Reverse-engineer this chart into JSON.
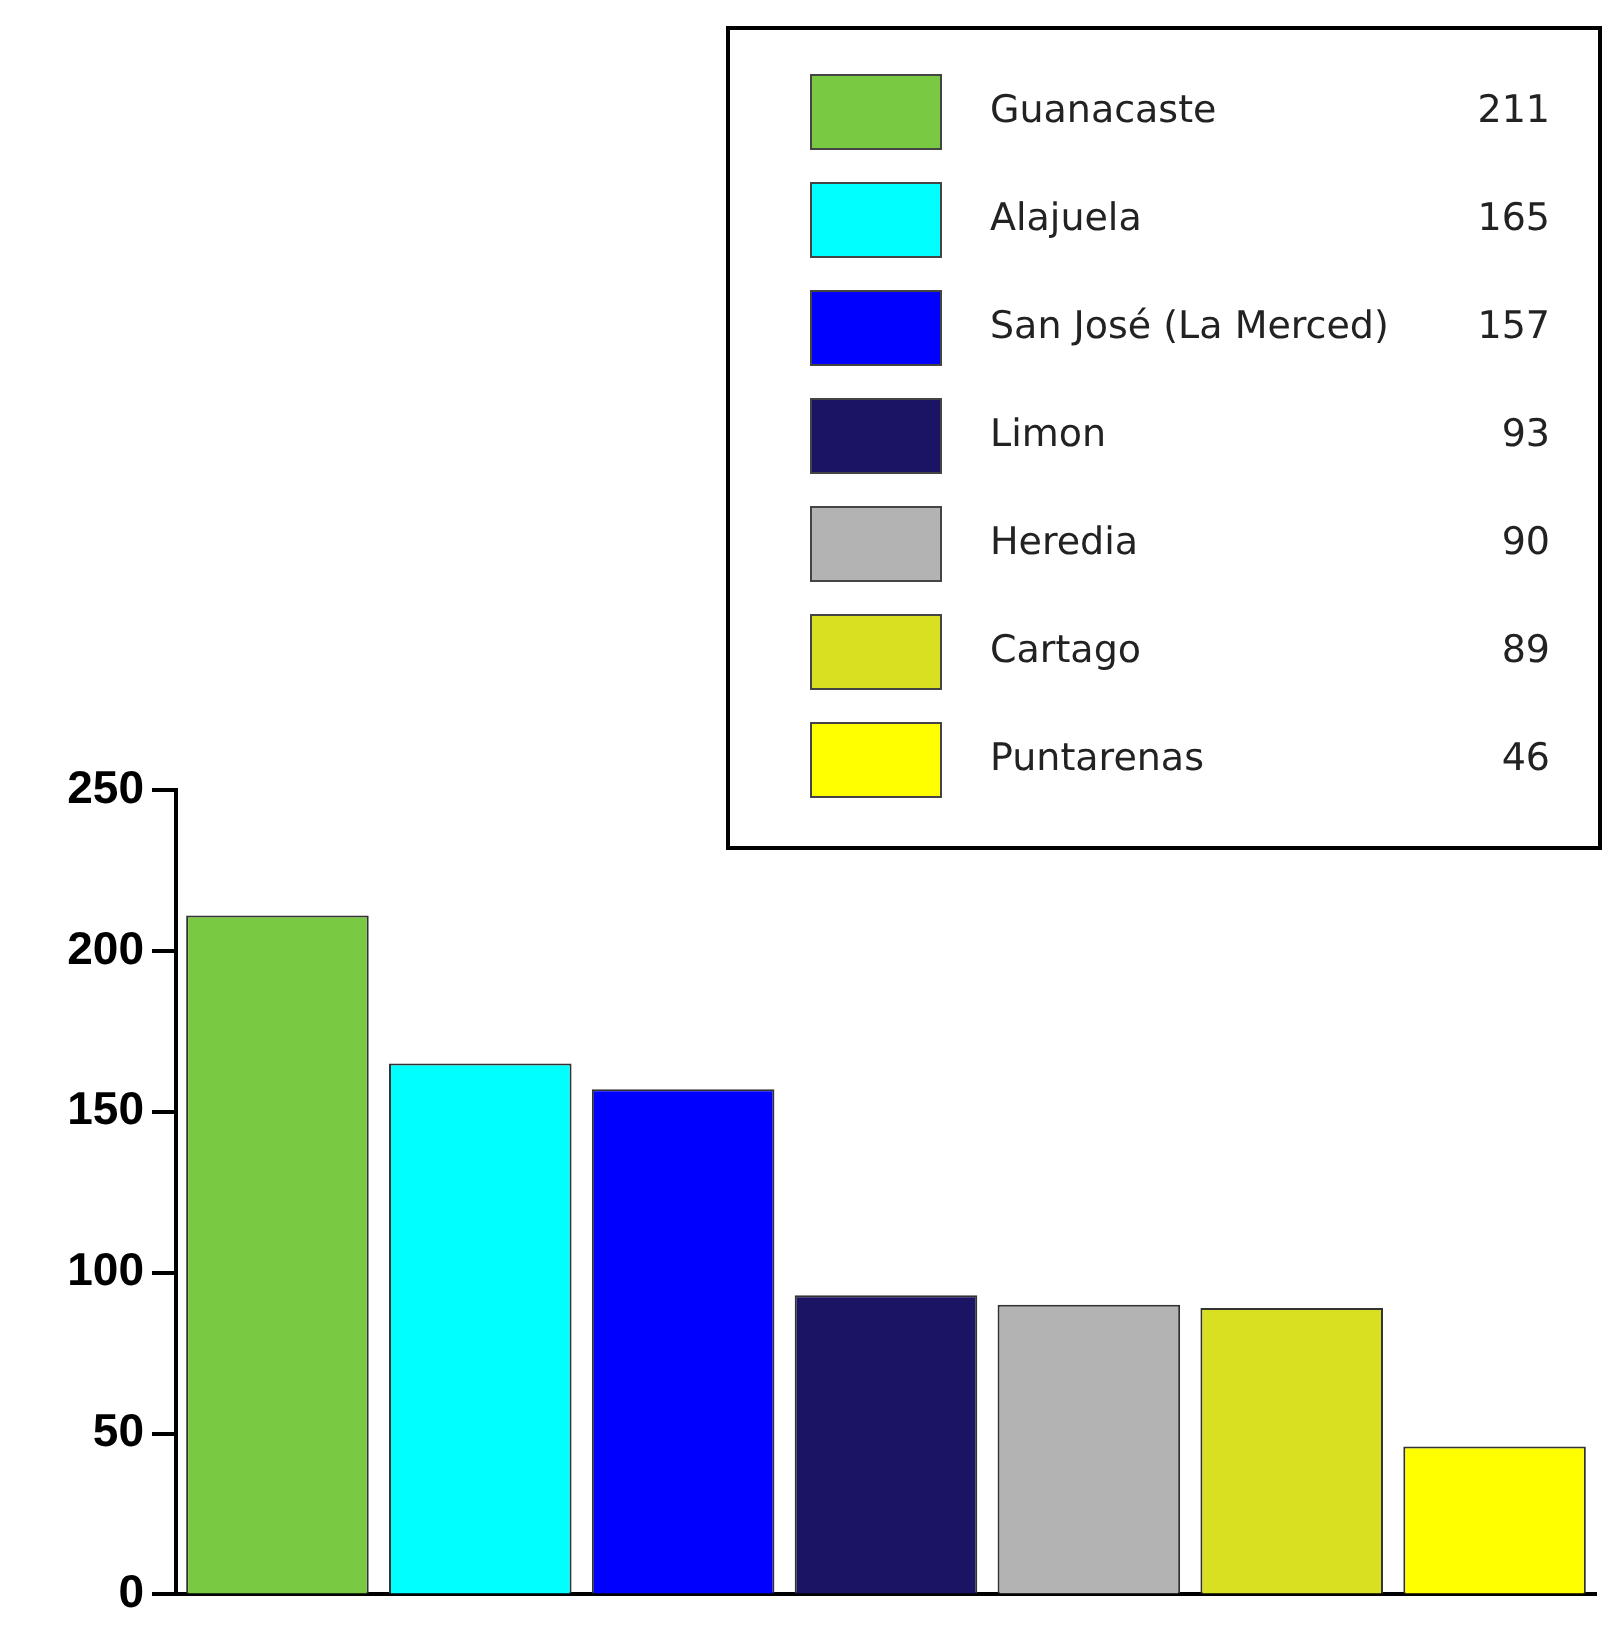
{
  "chart_data": {
    "type": "bar",
    "categories": [
      null,
      null,
      null,
      null,
      null,
      null,
      null
    ],
    "series": [
      {
        "name": "Guanacaste",
        "color": "#7ac943",
        "values": [
          211,
          null,
          null,
          null,
          null,
          null,
          null
        ]
      },
      {
        "name": "Alajuela",
        "color": "#00ffff",
        "values": [
          null,
          165,
          null,
          null,
          null,
          null,
          null
        ]
      },
      {
        "name": "San José (La Merced)",
        "color": "#0000ff",
        "values": [
          null,
          null,
          157,
          null,
          null,
          null,
          null
        ]
      },
      {
        "name": "Limon",
        "color": "#1b1464",
        "values": [
          null,
          null,
          null,
          93,
          null,
          null,
          null
        ]
      },
      {
        "name": "Heredia",
        "color": "#b3b3b3",
        "values": [
          null,
          null,
          null,
          null,
          90,
          null,
          null
        ]
      },
      {
        "name": "Cartago",
        "color": "#d9e021",
        "values": [
          null,
          null,
          null,
          null,
          null,
          89,
          null
        ]
      },
      {
        "name": "Puntarenas",
        "color": "#ffff00",
        "values": [
          null,
          null,
          null,
          null,
          null,
          null,
          46
        ]
      }
    ],
    "ylim": [
      0,
      250
    ],
    "yticks": [
      0,
      50,
      100,
      150,
      200,
      250
    ],
    "annotations": [
      "211",
      "165",
      "157",
      "93",
      "90",
      "89",
      "46"
    ],
    "grid": false,
    "legend": "top right",
    "tick_labels": "y"
  }
}
